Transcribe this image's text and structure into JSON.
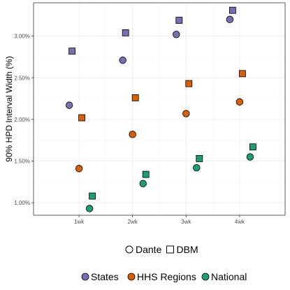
{
  "chart_data": {
    "type": "scatter",
    "xlabel": "",
    "ylabel": "90% HPD Interval Width (%)",
    "x_categories": [
      "1wk",
      "2wk",
      "3wk",
      "4wk"
    ],
    "ylim": [
      0.85,
      3.4
    ],
    "y_ticks": [
      1.0,
      1.5,
      2.0,
      2.5,
      3.0
    ],
    "y_tick_labels": [
      "1.00%",
      "1.50%",
      "2.00%",
      "2.50%",
      "3.00%"
    ],
    "grid": true,
    "legend_placement": "bottom",
    "shape_legend": [
      {
        "label": "Dante",
        "shape": "circle"
      },
      {
        "label": "DBM",
        "shape": "square"
      }
    ],
    "color_legend": [
      {
        "label": "States",
        "color": "#7570b3"
      },
      {
        "label": "HHS Regions",
        "color": "#d95f02"
      },
      {
        "label": "National",
        "color": "#1b9e77"
      }
    ],
    "series": [
      {
        "group": "States",
        "model": "Dante",
        "shape": "circle",
        "color": "#7570b3",
        "values": [
          2.17,
          2.71,
          3.02,
          3.2
        ]
      },
      {
        "group": "States",
        "model": "DBM",
        "shape": "square",
        "color": "#7570b3",
        "values": [
          2.82,
          3.04,
          3.19,
          3.31
        ]
      },
      {
        "group": "HHS Regions",
        "model": "Dante",
        "shape": "circle",
        "color": "#d95f02",
        "values": [
          1.41,
          1.82,
          2.07,
          2.21
        ]
      },
      {
        "group": "HHS Regions",
        "model": "DBM",
        "shape": "square",
        "color": "#d95f02",
        "values": [
          2.02,
          2.26,
          2.43,
          2.55
        ]
      },
      {
        "group": "National",
        "model": "Dante",
        "shape": "circle",
        "color": "#1b9e77",
        "values": [
          0.93,
          1.23,
          1.42,
          1.55
        ]
      },
      {
        "group": "National",
        "model": "DBM",
        "shape": "square",
        "color": "#1b9e77",
        "values": [
          1.08,
          1.34,
          1.53,
          1.67
        ]
      }
    ]
  }
}
